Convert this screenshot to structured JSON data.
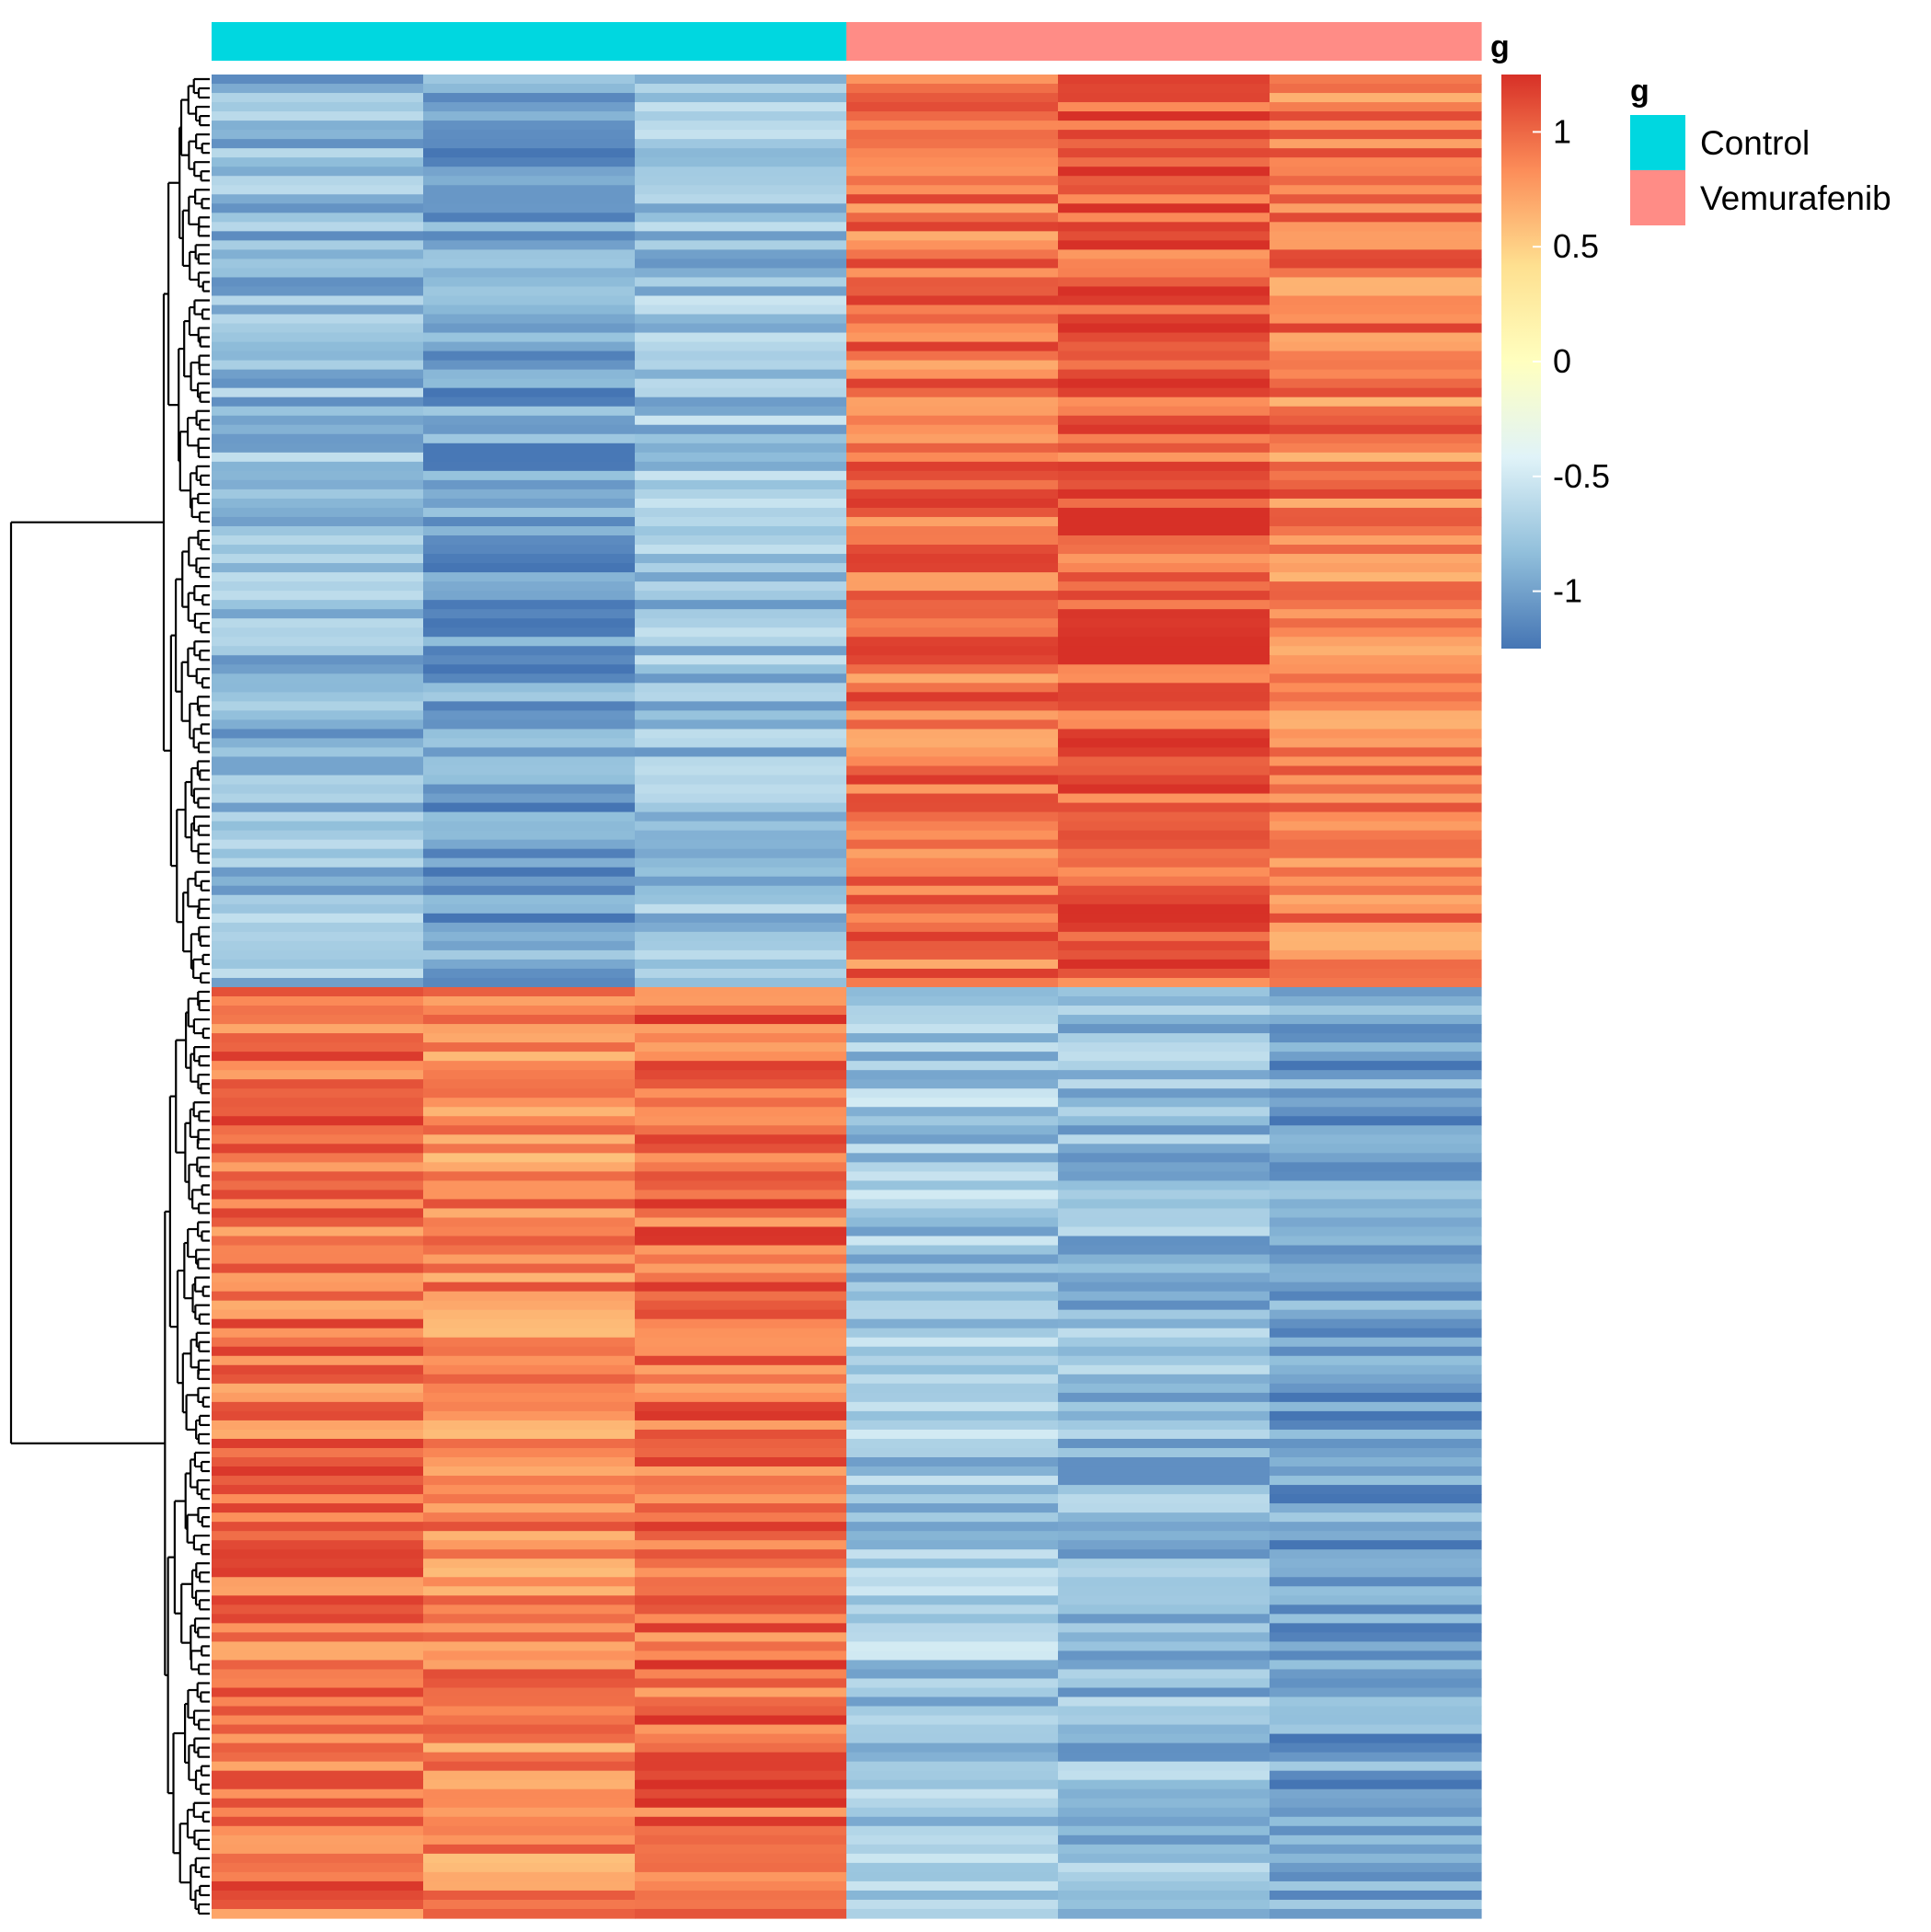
{
  "chart_data": {
    "type": "heatmap",
    "n_rows": 200,
    "n_cols": 6,
    "row_clusters": [
      {
        "name": "",
        "n_rows": 99,
        "profile": [
          -0.85,
          -1.0,
          -0.8,
          0.95,
          1.05,
          0.9
        ]
      },
      {
        "name": "",
        "n_rows": 101,
        "profile": [
          0.95,
          0.85,
          1.0,
          -0.75,
          -0.85,
          -1.0
        ]
      }
    ],
    "column_annotation": {
      "title": "g",
      "groups": [
        "Control",
        "Control",
        "Control",
        "Vemurafenib",
        "Vemurafenib",
        "Vemurafenib"
      ]
    },
    "colorbar": {
      "ticks": [
        1,
        0.5,
        0,
        -0.5,
        -1
      ],
      "tick_labels": [
        "1",
        "0.5",
        "0",
        "-0.5",
        "-1"
      ],
      "range": [
        -1.25,
        1.25
      ],
      "palette": [
        "#4575b4",
        "#91bfdb",
        "#e0f3f8",
        "#ffffbf",
        "#fee090",
        "#fc8d59",
        "#d73027"
      ]
    },
    "row_dendrogram": true,
    "column_dendrogram": false
  },
  "legend": {
    "title": "g",
    "items": [
      {
        "label": "Control",
        "color": "#00d7e0"
      },
      {
        "label": "Vemurafenib",
        "color": "#ff8c86"
      }
    ]
  }
}
